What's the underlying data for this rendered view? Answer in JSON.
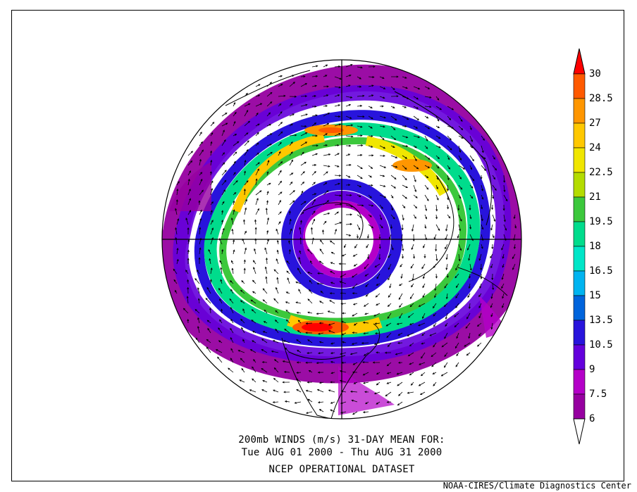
{
  "caption": {
    "line1": "200mb WINDS (m/s)   31-DAY MEAN FOR:",
    "line2": "Tue AUG 01 2000 - Thu AUG 31 2000",
    "line3": "NCEP OPERATIONAL DATASET"
  },
  "credit": "NOAA-CIRES/Climate Diagnostics Center",
  "colorbar": {
    "levels": [
      "30",
      "28.5",
      "27",
      "24",
      "22.5",
      "21",
      "19.5",
      "18",
      "16.5",
      "15",
      "13.5",
      "10.5",
      "9",
      "7.5",
      "6"
    ],
    "colors": [
      "#ff0000",
      "#ff5a00",
      "#ff9600",
      "#ffc800",
      "#f0e600",
      "#b4dc00",
      "#3cc83c",
      "#00dc8c",
      "#00e6c8",
      "#00b4f0",
      "#0064dc",
      "#2814dc",
      "#6400dc",
      "#b400c8",
      "#9600a0",
      "#ffffff"
    ]
  }
}
